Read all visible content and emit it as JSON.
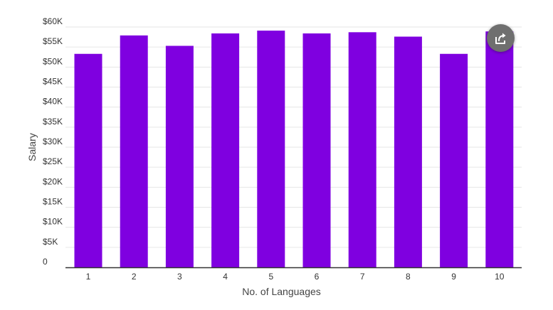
{
  "colors": {
    "bar": "#7f00e0",
    "grid": "#e6e6e6",
    "axis": "#333333",
    "text": "#333333",
    "share_button": "#6f6f6f"
  },
  "share_button": {
    "icon": "share-icon"
  },
  "chart_data": {
    "type": "bar",
    "categories": [
      "1",
      "2",
      "3",
      "4",
      "5",
      "6",
      "7",
      "8",
      "9",
      "10"
    ],
    "values": [
      53300,
      57900,
      55300,
      58400,
      59100,
      58400,
      58700,
      57600,
      53300,
      58900
    ],
    "xlabel": "No. of Languages",
    "ylabel": "Salary",
    "ylim": [
      0,
      60000
    ],
    "yticks": [
      0,
      5000,
      10000,
      15000,
      20000,
      25000,
      30000,
      35000,
      40000,
      45000,
      50000,
      55000,
      60000
    ],
    "ytick_labels": [
      "0",
      "$5K",
      "$10K",
      "$15K",
      "$20K",
      "$25K",
      "$30K",
      "$35K",
      "$40K",
      "$45K",
      "$50K",
      "$55K",
      "$60K"
    ],
    "grid": true,
    "legend": "none"
  }
}
